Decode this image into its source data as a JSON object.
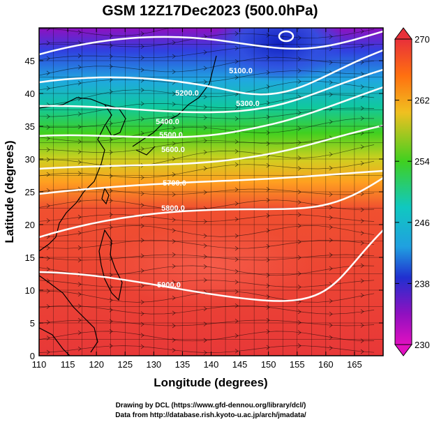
{
  "title": "GSM 12Z17Dec2023 (500.0hPa)",
  "x_axis": {
    "label": "Longitude (degrees)",
    "ticks": [
      "110",
      "115",
      "120",
      "125",
      "130",
      "135",
      "140",
      "145",
      "150",
      "155",
      "160",
      "165"
    ]
  },
  "y_axis": {
    "label": "Latitude (degrees)",
    "ticks": [
      "0",
      "5",
      "10",
      "15",
      "20",
      "25",
      "30",
      "35",
      "40",
      "45"
    ]
  },
  "colorbar": {
    "labels": [
      "270",
      "262",
      "254",
      "246",
      "238",
      "230"
    ],
    "colors": [
      "#e8303a",
      "#ff7a10",
      "#f0c020",
      "#40d020",
      "#10c8a0",
      "#20a0e0",
      "#2030d0",
      "#9010c0",
      "#e010c0"
    ]
  },
  "contour_labels": [
    "5100.0",
    "5200.0",
    "5300.0",
    "5400.0",
    "5500.0",
    "5600.0",
    "5700.0",
    "5800.0",
    "5900.0",
    "5900.0"
  ],
  "credits": [
    "Drawing by DCL (https://www.gfd-dennou.org/library/dcl/)",
    "Data from http://database.rish.kyoto-u.ac.jp/arch/jmadata/"
  ],
  "chart_data": {
    "type": "heatmap",
    "title": "GSM 12Z17Dec2023 (500.0hPa)",
    "xlabel": "Longitude (degrees)",
    "ylabel": "Latitude (degrees)",
    "xlim": [
      110,
      170
    ],
    "ylim": [
      0,
      50
    ],
    "color_range": [
      230,
      270
    ],
    "contour_levels": [
      5100,
      5200,
      5300,
      5400,
      5500,
      5600,
      5700,
      5800,
      5900
    ]
  }
}
